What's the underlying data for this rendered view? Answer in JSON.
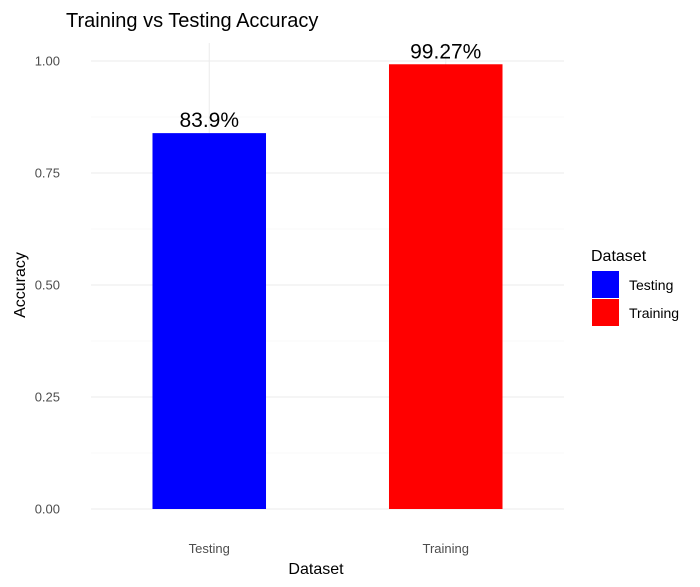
{
  "chart_data": {
    "type": "bar",
    "title": "Training vs Testing Accuracy",
    "xlabel": "Dataset",
    "ylabel": "Accuracy",
    "categories": [
      "Testing",
      "Training"
    ],
    "values": [
      0.839,
      0.9927
    ],
    "data_labels": [
      "83.9%",
      "99.27%"
    ],
    "colors": [
      "#0000FF",
      "#FF0000"
    ],
    "ylim": [
      0,
      1
    ],
    "yticks": [
      0,
      0.25,
      0.5,
      0.75,
      1.0
    ],
    "ytick_labels": [
      "0.00",
      "0.25",
      "0.50",
      "0.75",
      "1.00"
    ],
    "grid": true,
    "legend": {
      "title": "Dataset",
      "position": "right",
      "entries": [
        {
          "label": "Testing",
          "color": "#0000FF"
        },
        {
          "label": "Training",
          "color": "#FF0000"
        }
      ]
    }
  }
}
